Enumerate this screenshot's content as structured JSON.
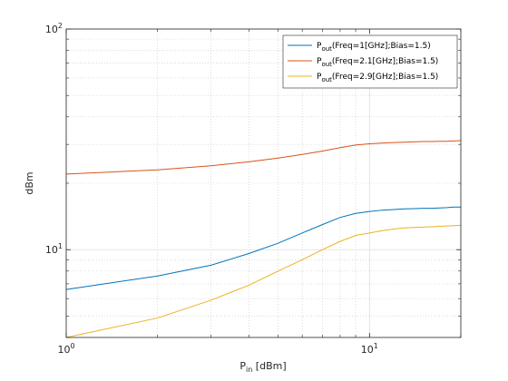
{
  "chart_data": {
    "type": "line",
    "x_scale": "log",
    "y_scale": "log",
    "xlim": [
      1,
      20
    ],
    "ylim": [
      4,
      100
    ],
    "grid": true,
    "xlabel": {
      "main": "P",
      "sub": "in",
      "rest": " [dBm]"
    },
    "ylabel": "dBm",
    "x_ticks": [
      {
        "value": 1,
        "base": "10",
        "exp": "0"
      },
      {
        "value": 10,
        "base": "10",
        "exp": "1"
      }
    ],
    "y_ticks": [
      {
        "value": 10,
        "base": "10",
        "exp": "1"
      },
      {
        "value": 100,
        "base": "10",
        "exp": "2"
      }
    ],
    "legend_location": "top-right",
    "series": [
      {
        "name": "Pout(Freq=1[GHz];Bias=1.5)",
        "legend_label": {
          "main": "P",
          "sub": "out",
          "rest": "(Freq=1[GHz];Bias=1.5)"
        },
        "color": "#0072BD",
        "x": [
          1,
          2,
          3,
          4,
          5,
          6,
          7,
          8,
          9,
          10,
          11,
          12,
          13,
          14,
          15,
          16,
          17,
          18,
          19,
          20
        ],
        "y": [
          6.6,
          7.6,
          8.5,
          9.6,
          10.7,
          11.9,
          13.0,
          14.0,
          14.6,
          14.9,
          15.1,
          15.2,
          15.3,
          15.35,
          15.4,
          15.4,
          15.45,
          15.5,
          15.6,
          15.6
        ]
      },
      {
        "name": "Pout(Freq=2.1[GHz];Bias=1.5)",
        "legend_label": {
          "main": "P",
          "sub": "out",
          "rest": "(Freq=2.1[GHz];Bias=1.5)"
        },
        "color": "#D95319",
        "x": [
          1,
          2,
          3,
          4,
          5,
          6,
          7,
          8,
          9,
          10,
          11,
          12,
          13,
          14,
          15,
          16,
          17,
          18,
          19,
          20
        ],
        "y": [
          22,
          23,
          24,
          25,
          26,
          27,
          28,
          29,
          29.8,
          30.2,
          30.4,
          30.6,
          30.7,
          30.8,
          30.9,
          30.9,
          31.0,
          31.0,
          31.1,
          31.2
        ]
      },
      {
        "name": "Pout(Freq=2.9[GHz];Bias=1.5)",
        "legend_label": {
          "main": "P",
          "sub": "out",
          "rest": "(Freq=2.9[GHz];Bias=1.5)"
        },
        "color": "#EDB120",
        "x": [
          1,
          2,
          3,
          4,
          5,
          6,
          7,
          8,
          9,
          10,
          11,
          12,
          13,
          14,
          15,
          16,
          17,
          18,
          19,
          20
        ],
        "y": [
          4.0,
          4.9,
          5.9,
          6.9,
          8.0,
          9.0,
          10.0,
          10.9,
          11.6,
          11.9,
          12.2,
          12.4,
          12.55,
          12.6,
          12.65,
          12.7,
          12.75,
          12.8,
          12.85,
          12.9
        ]
      }
    ]
  }
}
